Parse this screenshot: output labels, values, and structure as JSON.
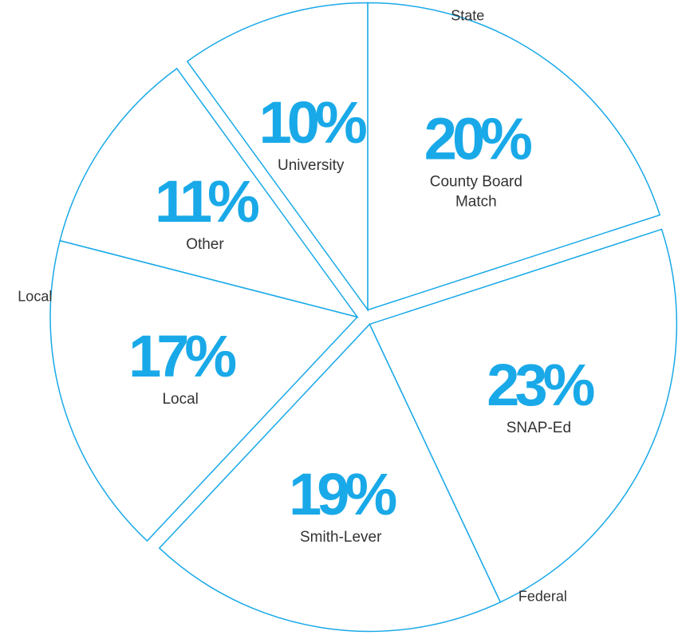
{
  "chart_data": {
    "type": "pie",
    "color": "#19a9e8",
    "series": [
      {
        "name": "State",
        "categories": [
          "University",
          "County Board Match"
        ],
        "values": [
          10,
          20
        ],
        "value_labels": [
          "10%",
          "20%"
        ]
      },
      {
        "name": "Federal",
        "categories": [
          "SNAP-Ed",
          "Smith-Lever"
        ],
        "values": [
          23,
          19
        ],
        "value_labels": [
          "23%",
          "19%"
        ]
      },
      {
        "name": "Local",
        "categories": [
          "Local",
          "Other"
        ],
        "values": [
          17,
          11
        ],
        "value_labels": [
          "17%",
          "11%"
        ]
      }
    ]
  }
}
